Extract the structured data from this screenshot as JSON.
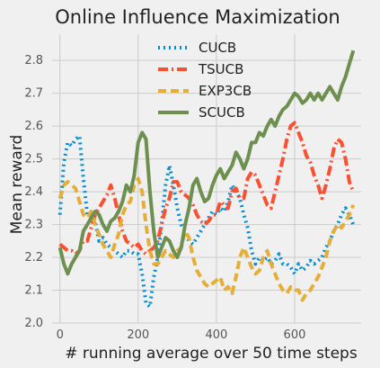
{
  "chart_data": {
    "type": "line",
    "title": "Online Influence Maximization",
    "xlabel": "# running average over 50 time steps",
    "ylabel": "Mean reward",
    "xlim": [
      -20,
      770
    ],
    "ylim": [
      2.0,
      2.88
    ],
    "xticks": [
      0,
      200,
      400,
      600
    ],
    "yticks": [
      2.0,
      2.1,
      2.2,
      2.3,
      2.4,
      2.5,
      2.6,
      2.7,
      2.8
    ],
    "ytick_labels": [
      "2.0",
      "2.1",
      "2.2",
      "2.3",
      "2.4",
      "2.5",
      "2.6",
      "2.7",
      "2.8"
    ],
    "grid": true,
    "legend_position": "upper center",
    "series": [
      {
        "name": "CUCB",
        "color": "#008fd5",
        "dash": "dotted",
        "x": [
          0,
          10,
          20,
          30,
          40,
          50,
          60,
          70,
          80,
          90,
          100,
          110,
          120,
          130,
          140,
          150,
          160,
          170,
          180,
          190,
          200,
          210,
          220,
          230,
          240,
          250,
          260,
          270,
          280,
          290,
          300,
          310,
          320,
          330,
          340,
          350,
          360,
          370,
          380,
          390,
          400,
          410,
          420,
          430,
          440,
          450,
          460,
          470,
          480,
          490,
          500,
          510,
          520,
          530,
          540,
          550,
          560,
          570,
          580,
          590,
          600,
          610,
          620,
          630,
          640,
          650,
          660,
          670,
          680,
          690,
          700,
          710,
          720,
          730,
          740,
          750
        ],
        "values": [
          2.33,
          2.49,
          2.55,
          2.54,
          2.56,
          2.57,
          2.44,
          2.33,
          2.33,
          2.31,
          2.25,
          2.26,
          2.24,
          2.23,
          2.22,
          2.21,
          2.2,
          2.22,
          2.22,
          2.21,
          2.21,
          2.15,
          2.06,
          2.05,
          2.14,
          2.2,
          2.3,
          2.42,
          2.48,
          2.42,
          2.35,
          2.3,
          2.28,
          2.25,
          2.24,
          2.26,
          2.28,
          2.3,
          2.32,
          2.34,
          2.33,
          2.35,
          2.34,
          2.37,
          2.42,
          2.4,
          2.38,
          2.33,
          2.29,
          2.22,
          2.18,
          2.2,
          2.19,
          2.2,
          2.18,
          2.19,
          2.21,
          2.18,
          2.18,
          2.17,
          2.15,
          2.18,
          2.16,
          2.17,
          2.19,
          2.18,
          2.19,
          2.2,
          2.23,
          2.25,
          2.28,
          2.3,
          2.33,
          2.35,
          2.33,
          2.3
        ]
      },
      {
        "name": "TSUCB",
        "color": "#fc4f30",
        "dash": "dashdot",
        "x": [
          0,
          10,
          20,
          30,
          40,
          50,
          60,
          70,
          80,
          90,
          100,
          110,
          120,
          130,
          140,
          150,
          160,
          170,
          180,
          190,
          200,
          210,
          220,
          230,
          240,
          250,
          260,
          270,
          280,
          290,
          300,
          310,
          320,
          330,
          340,
          350,
          360,
          370,
          380,
          390,
          400,
          410,
          420,
          430,
          440,
          450,
          460,
          470,
          480,
          490,
          500,
          510,
          520,
          530,
          540,
          550,
          560,
          570,
          580,
          590,
          600,
          610,
          620,
          630,
          640,
          650,
          660,
          670,
          680,
          690,
          700,
          710,
          720,
          730,
          740,
          750
        ],
        "values": [
          2.24,
          2.23,
          2.22,
          2.22,
          2.21,
          2.22,
          2.25,
          2.25,
          2.29,
          2.33,
          2.35,
          2.37,
          2.39,
          2.42,
          2.38,
          2.33,
          2.28,
          2.25,
          2.24,
          2.23,
          2.24,
          2.22,
          2.21,
          2.22,
          2.23,
          2.25,
          2.3,
          2.35,
          2.38,
          2.43,
          2.43,
          2.4,
          2.39,
          2.38,
          2.36,
          2.33,
          2.31,
          2.3,
          2.31,
          2.33,
          2.33,
          2.37,
          2.36,
          2.35,
          2.4,
          2.41,
          2.38,
          2.38,
          2.44,
          2.46,
          2.45,
          2.42,
          2.39,
          2.36,
          2.35,
          2.4,
          2.45,
          2.5,
          2.56,
          2.6,
          2.61,
          2.58,
          2.55,
          2.51,
          2.49,
          2.45,
          2.42,
          2.38,
          2.42,
          2.47,
          2.53,
          2.56,
          2.55,
          2.5,
          2.43,
          2.4
        ]
      },
      {
        "name": "EXP3CB",
        "color": "#e5ae38",
        "dash": "dashed",
        "x": [
          0,
          10,
          20,
          30,
          40,
          50,
          60,
          70,
          80,
          90,
          100,
          110,
          120,
          130,
          140,
          150,
          160,
          170,
          180,
          190,
          200,
          210,
          220,
          230,
          240,
          250,
          260,
          270,
          280,
          290,
          300,
          310,
          320,
          330,
          340,
          350,
          360,
          370,
          380,
          390,
          400,
          410,
          420,
          430,
          440,
          450,
          460,
          470,
          480,
          490,
          500,
          510,
          520,
          530,
          540,
          550,
          560,
          570,
          580,
          590,
          600,
          610,
          620,
          630,
          640,
          650,
          660,
          670,
          680,
          690,
          700,
          710,
          720,
          730,
          740,
          750
        ],
        "values": [
          2.38,
          2.42,
          2.43,
          2.42,
          2.41,
          2.37,
          2.33,
          2.32,
          2.34,
          2.3,
          2.27,
          2.24,
          2.22,
          2.2,
          2.24,
          2.27,
          2.33,
          2.36,
          2.37,
          2.42,
          2.44,
          2.4,
          2.3,
          2.22,
          2.18,
          2.18,
          2.2,
          2.22,
          2.21,
          2.2,
          2.22,
          2.23,
          2.28,
          2.26,
          2.2,
          2.16,
          2.14,
          2.12,
          2.11,
          2.12,
          2.13,
          2.14,
          2.1,
          2.11,
          2.09,
          2.14,
          2.2,
          2.23,
          2.2,
          2.17,
          2.15,
          2.16,
          2.2,
          2.22,
          2.18,
          2.15,
          2.12,
          2.1,
          2.09,
          2.11,
          2.1,
          2.1,
          2.07,
          2.09,
          2.1,
          2.12,
          2.14,
          2.17,
          2.2,
          2.25,
          2.28,
          2.3,
          2.29,
          2.31,
          2.33,
          2.36
        ]
      },
      {
        "name": "SCUCB",
        "color": "#6d904f",
        "dash": "solid",
        "x": [
          0,
          10,
          20,
          30,
          40,
          50,
          60,
          70,
          80,
          90,
          100,
          110,
          120,
          130,
          140,
          150,
          160,
          170,
          180,
          190,
          200,
          210,
          220,
          230,
          240,
          250,
          260,
          270,
          280,
          290,
          300,
          310,
          320,
          330,
          340,
          350,
          360,
          370,
          380,
          390,
          400,
          410,
          420,
          430,
          440,
          450,
          460,
          470,
          480,
          490,
          500,
          510,
          520,
          530,
          540,
          550,
          560,
          570,
          580,
          590,
          600,
          610,
          620,
          630,
          640,
          650,
          660,
          670,
          680,
          690,
          700,
          710,
          720,
          730,
          740,
          750
        ],
        "values": [
          2.23,
          2.18,
          2.15,
          2.18,
          2.2,
          2.22,
          2.28,
          2.3,
          2.32,
          2.34,
          2.33,
          2.3,
          2.28,
          2.31,
          2.32,
          2.34,
          2.37,
          2.42,
          2.4,
          2.45,
          2.55,
          2.58,
          2.56,
          2.4,
          2.28,
          2.2,
          2.23,
          2.26,
          2.25,
          2.22,
          2.2,
          2.23,
          2.3,
          2.35,
          2.42,
          2.44,
          2.4,
          2.37,
          2.38,
          2.42,
          2.45,
          2.47,
          2.44,
          2.46,
          2.48,
          2.52,
          2.5,
          2.47,
          2.5,
          2.55,
          2.55,
          2.58,
          2.57,
          2.6,
          2.62,
          2.6,
          2.63,
          2.65,
          2.66,
          2.68,
          2.7,
          2.69,
          2.67,
          2.68,
          2.7,
          2.68,
          2.7,
          2.68,
          2.7,
          2.72,
          2.7,
          2.68,
          2.72,
          2.75,
          2.79,
          2.83
        ]
      }
    ]
  }
}
